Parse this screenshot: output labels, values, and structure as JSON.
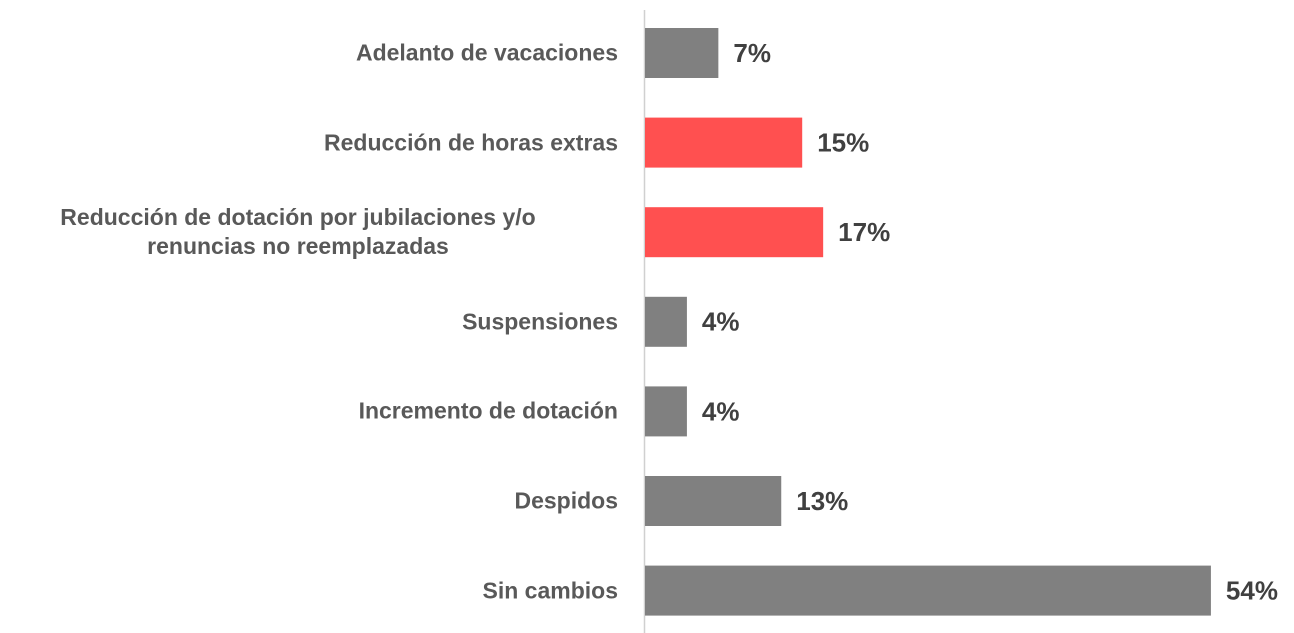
{
  "chart_data": {
    "type": "bar",
    "orientation": "horizontal",
    "categories": [
      "Adelanto de vacaciones",
      "Reducción de horas extras",
      "Reducción de dotación por jubilaciones y/o\nrenuncias no reemplazadas",
      "Suspensiones",
      "Incremento de dotación",
      "Despidos",
      "Sin cambios"
    ],
    "values": [
      7,
      15,
      17,
      4,
      4,
      13,
      54
    ],
    "value_labels": [
      "7%",
      "15%",
      "17%",
      "4%",
      "4%",
      "13%",
      "54%"
    ],
    "colors": [
      "#808080",
      "#ff5050",
      "#ff5050",
      "#808080",
      "#808080",
      "#808080",
      "#808080"
    ]
  }
}
